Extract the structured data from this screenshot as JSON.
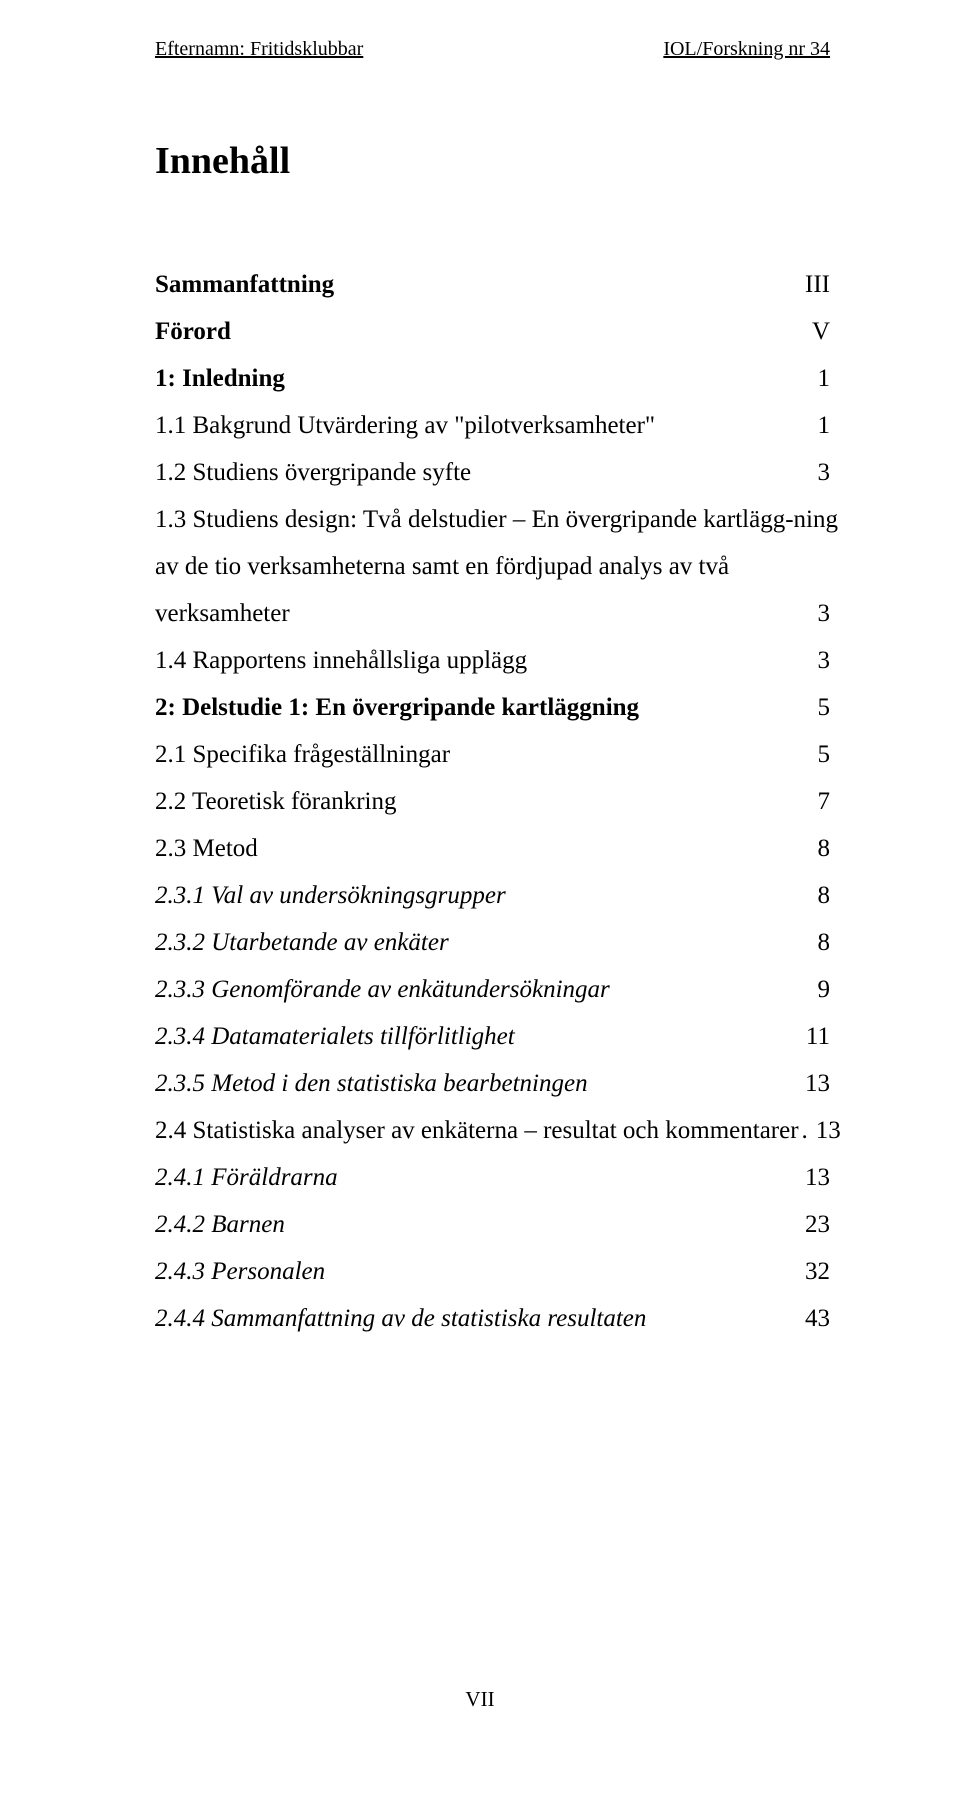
{
  "header": {
    "left": "Efternamn: Fritidsklubbar",
    "right": "IOL/Forskning nr 34"
  },
  "title": "Innehåll",
  "toc": [
    {
      "label": "Sammanfattning",
      "page": "III",
      "bold": true,
      "italic": false
    },
    {
      "label": "Förord",
      "page": "V",
      "bold": true,
      "italic": false
    },
    {
      "label": "1: Inledning",
      "page": "1",
      "bold": true,
      "italic": false
    },
    {
      "label": "1.1 Bakgrund Utvärdering av \"pilotverksamheter\"",
      "page": "1",
      "bold": false,
      "italic": false
    },
    {
      "label": "1.2 Studiens övergripande syfte",
      "page": "3",
      "bold": false,
      "italic": false
    },
    {
      "label_lines": [
        "1.3 Studiens design: Två delstudier – En övergripande kartlägg-ning",
        "av de tio verksamheterna samt en fördjupad analys av två",
        "verksamheter"
      ],
      "page": "3",
      "bold": false,
      "italic": false
    },
    {
      "label": "1.4 Rapportens innehållsliga upplägg",
      "page": "3",
      "bold": false,
      "italic": false
    },
    {
      "label": "2: Delstudie 1: En övergripande kartläggning",
      "page": "5",
      "bold": true,
      "italic": false
    },
    {
      "label": "2.1 Specifika frågeställningar",
      "page": "5",
      "bold": false,
      "italic": false
    },
    {
      "label": "2.2 Teoretisk förankring",
      "page": "7",
      "bold": false,
      "italic": false
    },
    {
      "label": "2.3 Metod",
      "page": "8",
      "bold": false,
      "italic": false
    },
    {
      "label": "2.3.1 Val av undersökningsgrupper",
      "page": "8",
      "bold": false,
      "italic": true
    },
    {
      "label": "2.3.2 Utarbetande av enkäter",
      "page": "8",
      "bold": false,
      "italic": true
    },
    {
      "label": "2.3.3 Genomförande av enkätundersökningar",
      "page": "9",
      "bold": false,
      "italic": true
    },
    {
      "label": "2.3.4 Datamaterialets tillförlitlighet",
      "page": "11",
      "bold": false,
      "italic": true
    },
    {
      "label": "2.3.5 Metod i den statistiska bearbetningen",
      "page": "13",
      "bold": false,
      "italic": true
    },
    {
      "label": "2.4 Statistiska analyser av enkäterna – resultat och kommentarer",
      "page": "13",
      "bold": false,
      "italic": false,
      "tight": true
    },
    {
      "label": "2.4.1 Föräldrarna",
      "page": "13",
      "bold": false,
      "italic": true
    },
    {
      "label": "2.4.2 Barnen",
      "page": "23",
      "bold": false,
      "italic": true
    },
    {
      "label": "2.4.3 Personalen",
      "page": "32",
      "bold": false,
      "italic": true
    },
    {
      "label": "2.4.4 Sammanfattning av de statistiska resultaten",
      "page": "43",
      "bold": false,
      "italic": true
    }
  ],
  "page_number": "VII"
}
